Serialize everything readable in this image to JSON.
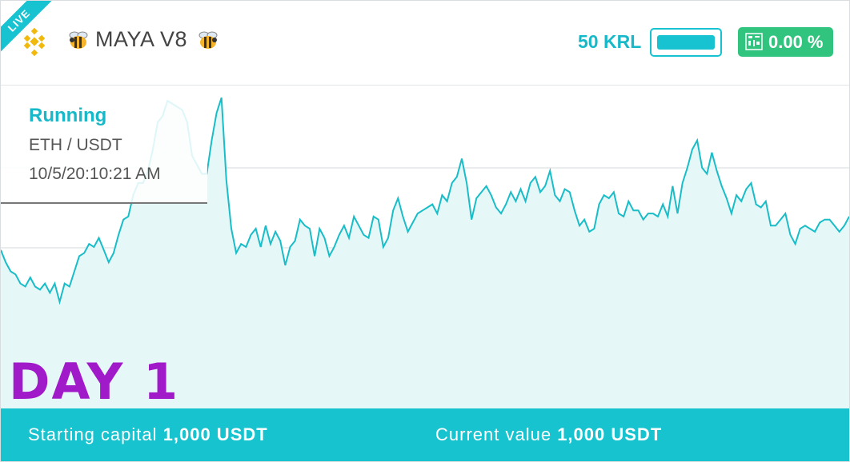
{
  "header": {
    "live_badge": "LIVE",
    "exchange_icon": "binance-logo",
    "bot_name": "MAYA V8",
    "krl_label": "50 KRL",
    "krl_progress": 1.0,
    "percent_change": "0.00 %",
    "accent_color": "#17c3d0",
    "green_color": "#31c47f"
  },
  "info": {
    "status": "Running",
    "pair": "ETH / USDT",
    "datetime": "10/5/20:10:21 AM"
  },
  "day_label": "DAY 1",
  "footer": {
    "starting_label": "Starting capital",
    "starting_value": "1,000 USDT",
    "current_label": "Current value",
    "current_value": "1,000 USDT"
  },
  "chart_data": {
    "type": "area",
    "values": [
      22,
      18,
      15,
      14,
      11,
      10,
      13,
      10,
      9,
      11,
      8,
      11,
      5,
      11,
      10,
      15,
      20,
      21,
      24,
      23,
      26,
      22,
      18,
      21,
      27,
      32,
      33,
      40,
      44,
      44,
      48,
      55,
      64,
      66,
      71,
      70,
      69,
      68,
      64,
      53,
      50,
      47,
      47,
      58,
      67,
      72,
      45,
      29,
      21,
      24,
      23,
      27,
      29,
      23,
      30,
      24,
      28,
      25,
      17,
      23,
      25,
      32,
      30,
      29,
      20,
      29,
      26,
      20,
      23,
      27,
      30,
      26,
      33,
      30,
      27,
      26,
      33,
      32,
      23,
      26,
      35,
      39,
      33,
      28,
      31,
      34,
      35,
      36,
      37,
      34,
      40,
      38,
      44,
      46,
      52,
      44,
      32,
      39,
      41,
      43,
      40,
      36,
      34,
      37,
      41,
      38,
      42,
      38,
      44,
      46,
      41,
      43,
      48,
      40,
      38,
      42,
      41,
      35,
      30,
      32,
      28,
      29,
      37,
      40,
      39,
      41,
      34,
      33,
      38,
      35,
      35,
      32,
      34,
      34,
      33,
      37,
      33,
      43,
      34,
      44,
      49,
      55,
      58,
      49,
      47,
      54,
      48,
      43,
      39,
      34,
      40,
      38,
      42,
      44,
      37,
      36,
      38,
      30,
      30,
      32,
      34,
      27,
      24,
      29,
      30,
      29,
      28,
      31,
      32,
      32,
      30,
      28,
      30,
      33
    ]
  }
}
